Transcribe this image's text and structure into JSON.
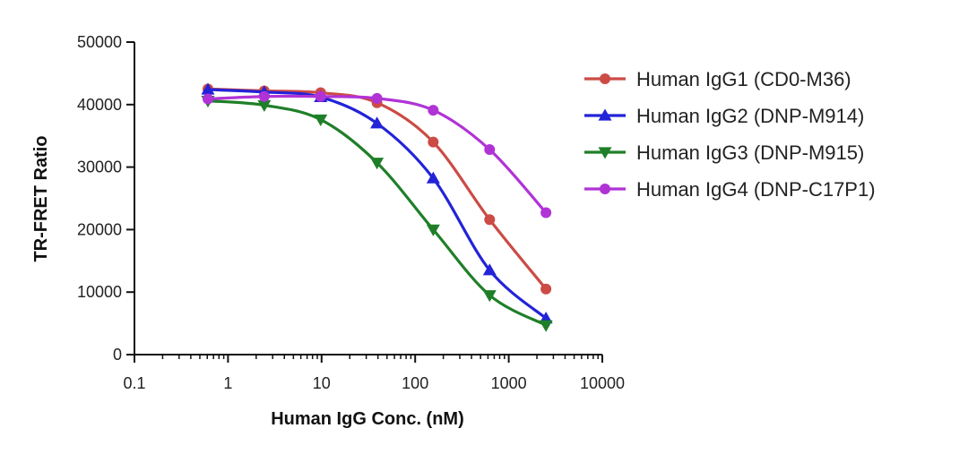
{
  "chart_data": {
    "type": "line",
    "xscale": "log",
    "xlabel": "Human IgG Conc. (nM)",
    "ylabel": "TR-FRET Ratio",
    "xlim": [
      0.1,
      10000
    ],
    "ylim": [
      0,
      50000
    ],
    "x_ticks": [
      0.1,
      1,
      10,
      100,
      1000,
      10000
    ],
    "x_tick_labels": [
      "0.1",
      "1",
      "10",
      "100",
      "1000",
      "10000"
    ],
    "y_ticks": [
      0,
      10000,
      20000,
      30000,
      40000,
      50000
    ],
    "y_tick_labels": [
      "0",
      "10000",
      "20000",
      "30000",
      "40000",
      "50000"
    ],
    "legend_position": "right",
    "x": [
      0.61,
      2.44,
      9.77,
      39.1,
      156,
      625,
      2500
    ],
    "series": [
      {
        "name": "Human IgG1 (CD0-M36)",
        "color": "#cc4b45",
        "marker": "circle",
        "values": [
          42500,
          42200,
          41900,
          40300,
          34000,
          21600,
          10500
        ]
      },
      {
        "name": "Human IgG2 (DNP-M914)",
        "color": "#2323d8",
        "marker": "triangle-up",
        "values": [
          42400,
          42000,
          41200,
          37000,
          28200,
          13500,
          5800
        ]
      },
      {
        "name": "Human IgG3 (DNP-M915)",
        "color": "#1f7f28",
        "marker": "triangle-down",
        "values": [
          40600,
          39900,
          37600,
          30700,
          20000,
          9500,
          4700
        ]
      },
      {
        "name": "Human IgG4 (DNP-C17P1)",
        "color": "#b033d6",
        "marker": "circle",
        "values": [
          40900,
          41300,
          41300,
          41000,
          39100,
          32800,
          22700
        ]
      }
    ]
  }
}
